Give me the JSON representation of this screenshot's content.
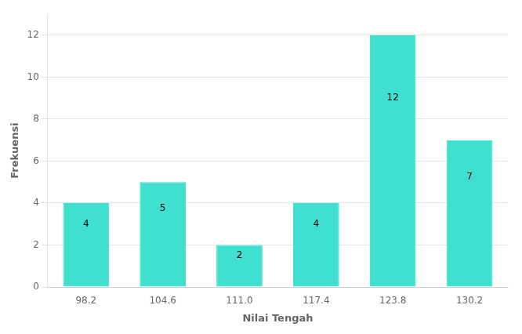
{
  "chart_data": {
    "type": "bar",
    "categories": [
      "98.2",
      "104.6",
      "111.0",
      "117.4",
      "123.8",
      "130.2"
    ],
    "values": [
      4,
      5,
      2,
      4,
      12,
      7
    ],
    "color": "#40E0D0",
    "xlabel": "Nilai Tengah",
    "ylabel": "Frekuensi",
    "ylim": [
      0,
      13
    ],
    "yticks": [
      0,
      2,
      4,
      6,
      8,
      10,
      12
    ],
    "grid": true,
    "data_labels": true
  }
}
